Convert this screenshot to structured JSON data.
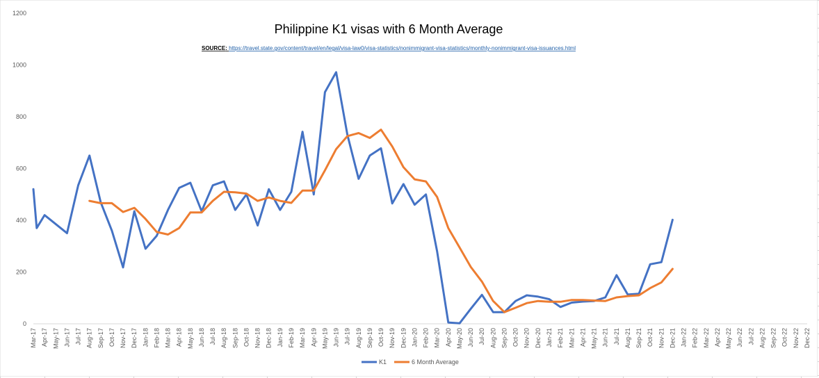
{
  "chart_data": {
    "type": "line",
    "title": "Philippine K1 visas with 6 Month Average",
    "source_label": "SOURCE",
    "source_url": "https://travel.state.gov/content/travel/en/legal/visa-law0/visa-statistics/nonimmigrant-visa-statistics/monthly-nonimmigrant-visa-issuances.html",
    "xlabel": "",
    "ylabel": "",
    "ylim": [
      0,
      1200
    ],
    "yticks": [
      0,
      200,
      400,
      600,
      800,
      1000,
      1200
    ],
    "grid": false,
    "legend_position": "bottom",
    "categories": [
      "Mar-17",
      "Apr-17",
      "May-17",
      "Jun-17",
      "Jul-17",
      "Aug-17",
      "Sep-17",
      "Oct-17",
      "Nov-17",
      "Dec-17",
      "Jan-18",
      "Feb-18",
      "Mar-18",
      "Apr-18",
      "May-18",
      "Jun-18",
      "Jul-18",
      "Aug-18",
      "Sep-18",
      "Oct-18",
      "Nov-18",
      "Dec-18",
      "Jan-19",
      "Feb-19",
      "Mar-19",
      "Apr-19",
      "May-19",
      "Jun-19",
      "Jul-19",
      "Aug-19",
      "Sep-19",
      "Oct-19",
      "Nov-19",
      "Dec-19",
      "Jan-20",
      "Feb-20",
      "Mar-20",
      "Apr-20",
      "May-20",
      "Jun-20",
      "Jul-20",
      "Aug-20",
      "Sep-20",
      "Oct-20",
      "Nov-20",
      "Dec-20",
      "Jan-21",
      "Feb-21",
      "Mar-21",
      "Apr-21",
      "May-21",
      "Jun-21",
      "Jul-21",
      "Aug-21",
      "Sep-21",
      "Oct-21",
      "Nov-21",
      "Dec-21",
      "Jan-22",
      "Feb-22",
      "Mar-22",
      "Apr-22",
      "May-22",
      "Jun-22",
      "Jul-22",
      "Aug-22",
      "Sep-22",
      "Oct-22",
      "Nov-22",
      "Dec-22"
    ],
    "series": [
      {
        "name": "K1",
        "color": "#4472c4",
        "points": [
          [
            "Mar-17",
            520
          ],
          [
            "Mar-17",
            370
          ],
          [
            "Apr-17",
            420
          ],
          [
            "Jun-17",
            350
          ],
          [
            "Jul-17",
            535
          ],
          [
            "Aug-17",
            650
          ],
          [
            "Sep-17",
            470
          ],
          [
            "Oct-17",
            360
          ],
          [
            "Nov-17",
            218
          ],
          [
            "Dec-17",
            435
          ],
          [
            "Jan-18",
            290
          ],
          [
            "Feb-18",
            340
          ],
          [
            "Mar-18",
            440
          ],
          [
            "Apr-18",
            525
          ],
          [
            "May-18",
            545
          ],
          [
            "Jun-18",
            435
          ],
          [
            "Jul-18",
            535
          ],
          [
            "Aug-18",
            550
          ],
          [
            "Sep-18",
            440
          ],
          [
            "Oct-18",
            500
          ],
          [
            "Nov-18",
            380
          ],
          [
            "Dec-18",
            520
          ],
          [
            "Jan-19",
            440
          ],
          [
            "Feb-19",
            510
          ],
          [
            "Mar-19",
            742
          ],
          [
            "Apr-19",
            500
          ],
          [
            "May-19",
            895
          ],
          [
            "Jun-19",
            972
          ],
          [
            "Jul-19",
            730
          ],
          [
            "Aug-19",
            560
          ],
          [
            "Sep-19",
            650
          ],
          [
            "Oct-19",
            678
          ],
          [
            "Nov-19",
            465
          ],
          [
            "Dec-19",
            540
          ],
          [
            "Jan-20",
            460
          ],
          [
            "Feb-20",
            500
          ],
          [
            "Mar-20",
            280
          ],
          [
            "Apr-20",
            5
          ],
          [
            "May-20",
            2
          ],
          [
            "Jun-20",
            58
          ],
          [
            "Jul-20",
            112
          ],
          [
            "Aug-20",
            45
          ],
          [
            "Sep-20",
            45
          ],
          [
            "Oct-20",
            88
          ],
          [
            "Nov-20",
            110
          ],
          [
            "Dec-20",
            105
          ],
          [
            "Jan-21",
            95
          ],
          [
            "Feb-21",
            65
          ],
          [
            "Mar-21",
            82
          ],
          [
            "Apr-21",
            86
          ],
          [
            "May-21",
            88
          ],
          [
            "Jun-21",
            102
          ],
          [
            "Jul-21",
            188
          ],
          [
            "Aug-21",
            113
          ],
          [
            "Sep-21",
            116
          ],
          [
            "Oct-21",
            230
          ],
          [
            "Nov-21",
            238
          ],
          [
            "Dec-21",
            402
          ]
        ]
      },
      {
        "name": "6 Month Average",
        "color": "#ed7d31",
        "points": [
          [
            "Aug-17",
            475
          ],
          [
            "Sep-17",
            466
          ],
          [
            "Oct-17",
            466
          ],
          [
            "Nov-17",
            432
          ],
          [
            "Dec-17",
            448
          ],
          [
            "Jan-18",
            405
          ],
          [
            "Feb-18",
            355
          ],
          [
            "Mar-18",
            345
          ],
          [
            "Apr-18",
            370
          ],
          [
            "May-18",
            430
          ],
          [
            "Jun-18",
            430
          ],
          [
            "Jul-18",
            475
          ],
          [
            "Aug-18",
            510
          ],
          [
            "Sep-18",
            508
          ],
          [
            "Oct-18",
            503
          ],
          [
            "Nov-18",
            475
          ],
          [
            "Dec-18",
            488
          ],
          [
            "Jan-19",
            475
          ],
          [
            "Feb-19",
            467
          ],
          [
            "Mar-19",
            515
          ],
          [
            "Apr-19",
            515
          ],
          [
            "May-19",
            593
          ],
          [
            "Jun-19",
            675
          ],
          [
            "Jul-19",
            725
          ],
          [
            "Aug-19",
            737
          ],
          [
            "Sep-19",
            718
          ],
          [
            "Oct-19",
            750
          ],
          [
            "Nov-19",
            685
          ],
          [
            "Dec-19",
            605
          ],
          [
            "Jan-20",
            558
          ],
          [
            "Feb-20",
            550
          ],
          [
            "Mar-20",
            490
          ],
          [
            "Apr-20",
            370
          ],
          [
            "May-20",
            295
          ],
          [
            "Jun-20",
            220
          ],
          [
            "Jul-20",
            163
          ],
          [
            "Aug-20",
            88
          ],
          [
            "Sep-20",
            45
          ],
          [
            "Oct-20",
            62
          ],
          [
            "Nov-20",
            80
          ],
          [
            "Dec-20",
            88
          ],
          [
            "Jan-21",
            85
          ],
          [
            "Feb-21",
            85
          ],
          [
            "Mar-21",
            92
          ],
          [
            "Apr-21",
            92
          ],
          [
            "May-21",
            90
          ],
          [
            "Jun-21",
            88
          ],
          [
            "Jul-21",
            102
          ],
          [
            "Aug-21",
            107
          ],
          [
            "Sep-21",
            110
          ],
          [
            "Oct-21",
            138
          ],
          [
            "Nov-21",
            160
          ],
          [
            "Dec-21",
            212
          ]
        ]
      }
    ]
  }
}
